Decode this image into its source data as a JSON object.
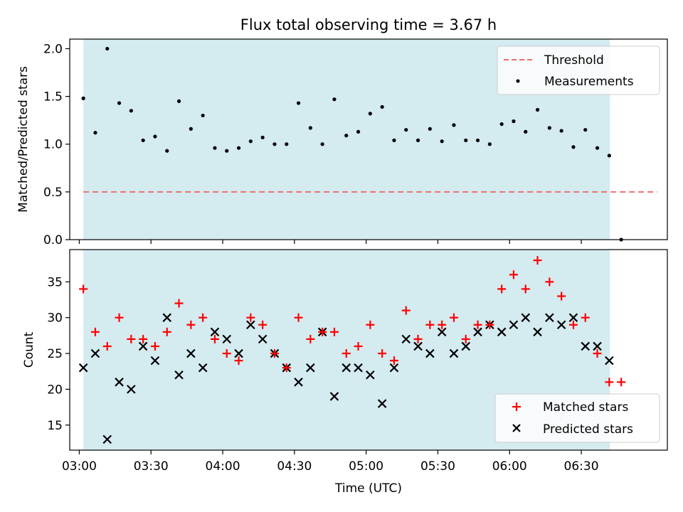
{
  "title": "Flux total observing time = 3.67 h",
  "colors": {
    "band": "#d4ebf0",
    "threshold": "#f07070",
    "matched": "#ff0000",
    "predicted": "#000000",
    "measurement": "#000000"
  },
  "chart_data": [
    {
      "type": "scatter",
      "panel": "top",
      "title": "Flux total observing time = 3.67 h",
      "xlabel": "",
      "ylabel": "Matched/Predicted stars",
      "xlim": [
        176,
        426
      ],
      "ylim": [
        0.0,
        2.1
      ],
      "yticks": [
        0.0,
        0.5,
        1.0,
        1.5,
        2.0
      ],
      "ytick_labels": [
        "0.0",
        "0.5",
        "1.0",
        "1.5",
        "2.0"
      ],
      "shaded_band": [
        181.7,
        402.0
      ],
      "threshold": {
        "name": "Threshold",
        "y": 0.5,
        "x_range": [
          181.7,
          421.8
        ]
      },
      "legend": {
        "position": "top-right",
        "entries": [
          "Threshold",
          "Measurements"
        ]
      },
      "series": [
        {
          "name": "Measurements",
          "points": [
            [
              181.7,
              1.48
            ],
            [
              186.7,
              1.12
            ],
            [
              191.7,
              2.0
            ],
            [
              196.7,
              1.43
            ],
            [
              201.7,
              1.35
            ],
            [
              206.7,
              1.04
            ],
            [
              211.7,
              1.08
            ],
            [
              216.7,
              0.93
            ],
            [
              221.7,
              1.45
            ],
            [
              226.7,
              1.16
            ],
            [
              231.7,
              1.3
            ],
            [
              236.7,
              0.96
            ],
            [
              241.7,
              0.93
            ],
            [
              246.7,
              0.96
            ],
            [
              251.7,
              1.03
            ],
            [
              256.7,
              1.07
            ],
            [
              261.7,
              1.0
            ],
            [
              266.7,
              1.0
            ],
            [
              271.7,
              1.43
            ],
            [
              276.7,
              1.17
            ],
            [
              281.7,
              1.0
            ],
            [
              286.7,
              1.47
            ],
            [
              291.7,
              1.09
            ],
            [
              296.7,
              1.13
            ],
            [
              301.7,
              1.32
            ],
            [
              306.7,
              1.39
            ],
            [
              311.7,
              1.04
            ],
            [
              316.7,
              1.15
            ],
            [
              321.7,
              1.04
            ],
            [
              326.7,
              1.16
            ],
            [
              331.7,
              1.03
            ],
            [
              336.7,
              1.2
            ],
            [
              341.7,
              1.04
            ],
            [
              346.7,
              1.04
            ],
            [
              351.7,
              1.0
            ],
            [
              356.7,
              1.21
            ],
            [
              361.7,
              1.24
            ],
            [
              366.7,
              1.13
            ],
            [
              371.7,
              1.36
            ],
            [
              376.7,
              1.17
            ],
            [
              381.7,
              1.14
            ],
            [
              386.7,
              0.97
            ],
            [
              391.7,
              1.15
            ],
            [
              396.7,
              0.96
            ],
            [
              401.7,
              0.88
            ],
            [
              406.7,
              0.0
            ]
          ]
        }
      ]
    },
    {
      "type": "scatter",
      "panel": "bottom",
      "xlabel": "Time (UTC)",
      "ylabel": "Count",
      "xlim": [
        176,
        426
      ],
      "ylim": [
        11.5,
        39.5
      ],
      "yticks": [
        15,
        20,
        25,
        30,
        35
      ],
      "ytick_labels": [
        "15",
        "20",
        "25",
        "30",
        "35"
      ],
      "xticks": [
        180,
        210,
        240,
        270,
        300,
        330,
        360,
        390
      ],
      "xtick_labels": [
        "03:00",
        "03:30",
        "04:00",
        "04:30",
        "05:00",
        "05:30",
        "06:00",
        "06:30"
      ],
      "shaded_band": [
        181.7,
        402.0
      ],
      "legend": {
        "position": "bottom-right",
        "entries": [
          "Matched stars",
          "Predicted stars"
        ]
      },
      "x": [
        181.7,
        186.7,
        191.7,
        196.7,
        201.7,
        206.7,
        211.7,
        216.7,
        221.7,
        226.7,
        231.7,
        236.7,
        241.7,
        246.7,
        251.7,
        256.7,
        261.7,
        266.7,
        271.7,
        276.7,
        281.7,
        286.7,
        291.7,
        296.7,
        301.7,
        306.7,
        311.7,
        316.7,
        321.7,
        326.7,
        331.7,
        336.7,
        341.7,
        346.7,
        351.7,
        356.7,
        361.7,
        366.7,
        371.7,
        376.7,
        381.7,
        386.7,
        391.7,
        396.7,
        401.7,
        406.7
      ],
      "series": [
        {
          "name": "Matched stars",
          "marker": "plus",
          "values": [
            34,
            28,
            26,
            30,
            27,
            27,
            26,
            28,
            32,
            29,
            30,
            27,
            25,
            24,
            30,
            29,
            25,
            23,
            30,
            27,
            28,
            28,
            25,
            26,
            29,
            25,
            24,
            31,
            27,
            29,
            29,
            30,
            27,
            29,
            29,
            34,
            36,
            34,
            38,
            35,
            33,
            29,
            30,
            25,
            21,
            21
          ]
        },
        {
          "name": "Predicted stars",
          "marker": "x",
          "values": [
            23,
            25,
            13,
            21,
            20,
            26,
            24,
            30,
            22,
            25,
            23,
            28,
            27,
            25,
            29,
            27,
            25,
            23,
            21,
            23,
            28,
            19,
            23,
            23,
            22,
            18,
            23,
            27,
            26,
            25,
            28,
            25,
            26,
            28,
            29,
            28,
            29,
            30,
            28,
            30,
            29,
            30,
            26,
            26,
            24,
            null
          ]
        }
      ]
    }
  ]
}
